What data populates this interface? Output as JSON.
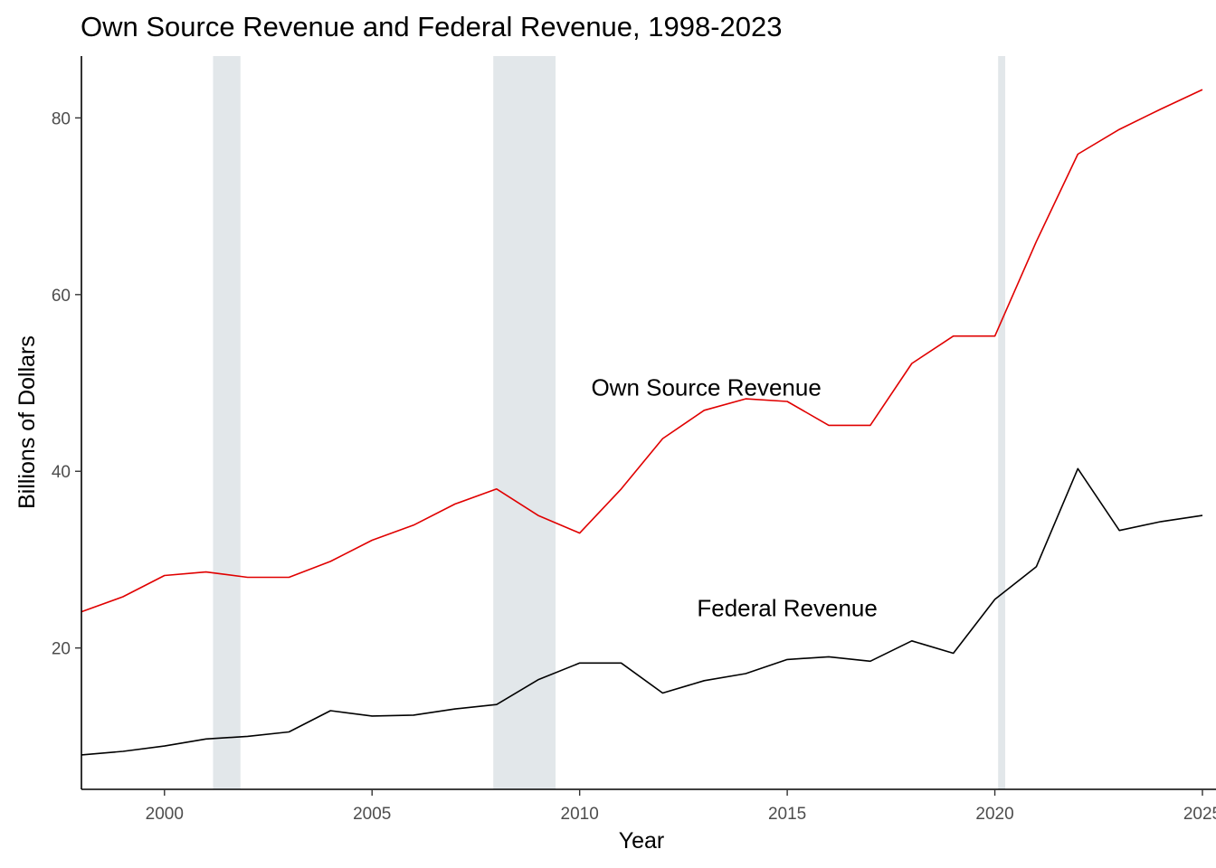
{
  "chart_data": {
    "type": "line",
    "title": "Own Source Revenue and Federal Revenue, 1998-2023",
    "xlabel": "Year",
    "ylabel": "Billions of Dollars",
    "xlim": [
      1998,
      2025
    ],
    "ylim": [
      4,
      87
    ],
    "x_ticks": [
      2000,
      2005,
      2010,
      2015,
      2020,
      2025
    ],
    "x_tick_labels": [
      "2000",
      "2005",
      "2010",
      "2015",
      "2020",
      "2025"
    ],
    "y_ticks": [
      20,
      40,
      60,
      80
    ],
    "y_tick_labels": [
      "20",
      "40",
      "60",
      "80"
    ],
    "grid": false,
    "shaded_periods": [
      {
        "start": 2001.17,
        "end": 2001.83
      },
      {
        "start": 2007.92,
        "end": 2009.42
      },
      {
        "start": 2020.08,
        "end": 2020.25
      }
    ],
    "shade_color": "#e2e7ea",
    "x": [
      1998,
      1999,
      2000,
      2001,
      2002,
      2003,
      2004,
      2005,
      2006,
      2007,
      2008,
      2009,
      2010,
      2011,
      2012,
      2013,
      2014,
      2015,
      2016,
      2017,
      2018,
      2019,
      2020,
      2021,
      2022,
      2023,
      2024,
      2025
    ],
    "series": [
      {
        "name": "Own Source Revenue",
        "color": "#e00000",
        "values": [
          24.1,
          25.8,
          28.2,
          28.6,
          28.0,
          28.0,
          29.8,
          32.2,
          33.9,
          36.3,
          38.0,
          35.0,
          33.0,
          38.0,
          43.7,
          46.9,
          48.2,
          47.9,
          45.2,
          45.2,
          52.2,
          55.3,
          55.3,
          66.0,
          75.9,
          78.7,
          81.0,
          83.2
        ]
      },
      {
        "name": "Federal Revenue",
        "color": "#000000",
        "values": [
          7.9,
          8.3,
          8.9,
          9.7,
          10.0,
          10.5,
          12.9,
          12.3,
          12.4,
          13.1,
          13.6,
          16.4,
          18.3,
          18.3,
          14.9,
          16.3,
          17.1,
          18.7,
          19.0,
          18.5,
          20.8,
          19.4,
          25.5,
          29.2,
          40.3,
          33.3,
          34.3,
          35.0
        ]
      }
    ],
    "annotations": [
      {
        "text": "Own Source Revenue",
        "x": 2013.05,
        "y": 49.5
      },
      {
        "text": "Federal Revenue",
        "x": 2015.0,
        "y": 24.5
      }
    ]
  }
}
